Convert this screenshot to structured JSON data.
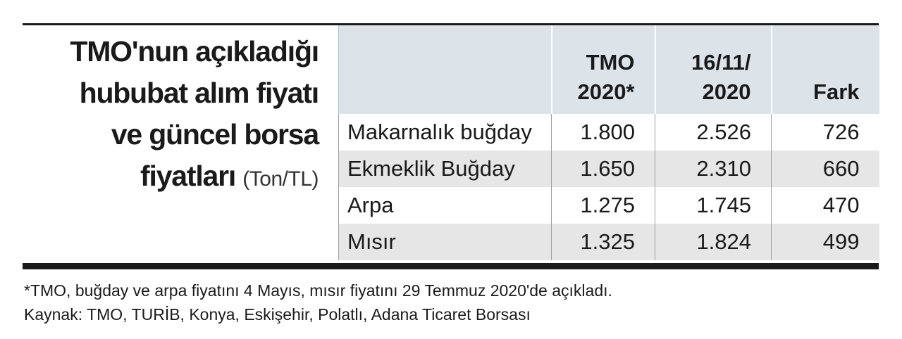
{
  "title": {
    "lines": [
      "TMO'nun açıkladığı",
      "hububat alım fiyatı",
      "ve güncel borsa",
      "fiyatları"
    ],
    "unit": "(Ton/TL)"
  },
  "chart_data": {
    "type": "table",
    "columns": [
      {
        "line1": "",
        "line2": ""
      },
      {
        "line1": "TMO",
        "line2": "2020*"
      },
      {
        "line1": "16/11/",
        "line2": "2020"
      },
      {
        "line1": "",
        "line2": "Fark"
      }
    ],
    "rows": [
      {
        "label": "Makarnalık buğday",
        "tmo": "1.800",
        "borsa": "2.526",
        "fark": "726"
      },
      {
        "label": "Ekmeklik Buğday",
        "tmo": "1.650",
        "borsa": "2.310",
        "fark": "660"
      },
      {
        "label": "Arpa",
        "tmo": "1.275",
        "borsa": "1.745",
        "fark": "470"
      },
      {
        "label": "Mısır",
        "tmo": "1.325",
        "borsa": "1.824",
        "fark": "499"
      }
    ]
  },
  "footnote": {
    "note": "*TMO, buğday ve arpa fiyatını 4 Mayıs, mısır fiyatını 29 Temmuz 2020'de açıkladı.",
    "source": "Kaynak: TMO, TURİB, Konya, Eskişehir, Polatlı, Adana Ticaret Borsası"
  },
  "colors": {
    "header_bg": "#dce4ea",
    "stripe_bg": "#e6e6e6",
    "rule": "#1a1a1a"
  }
}
